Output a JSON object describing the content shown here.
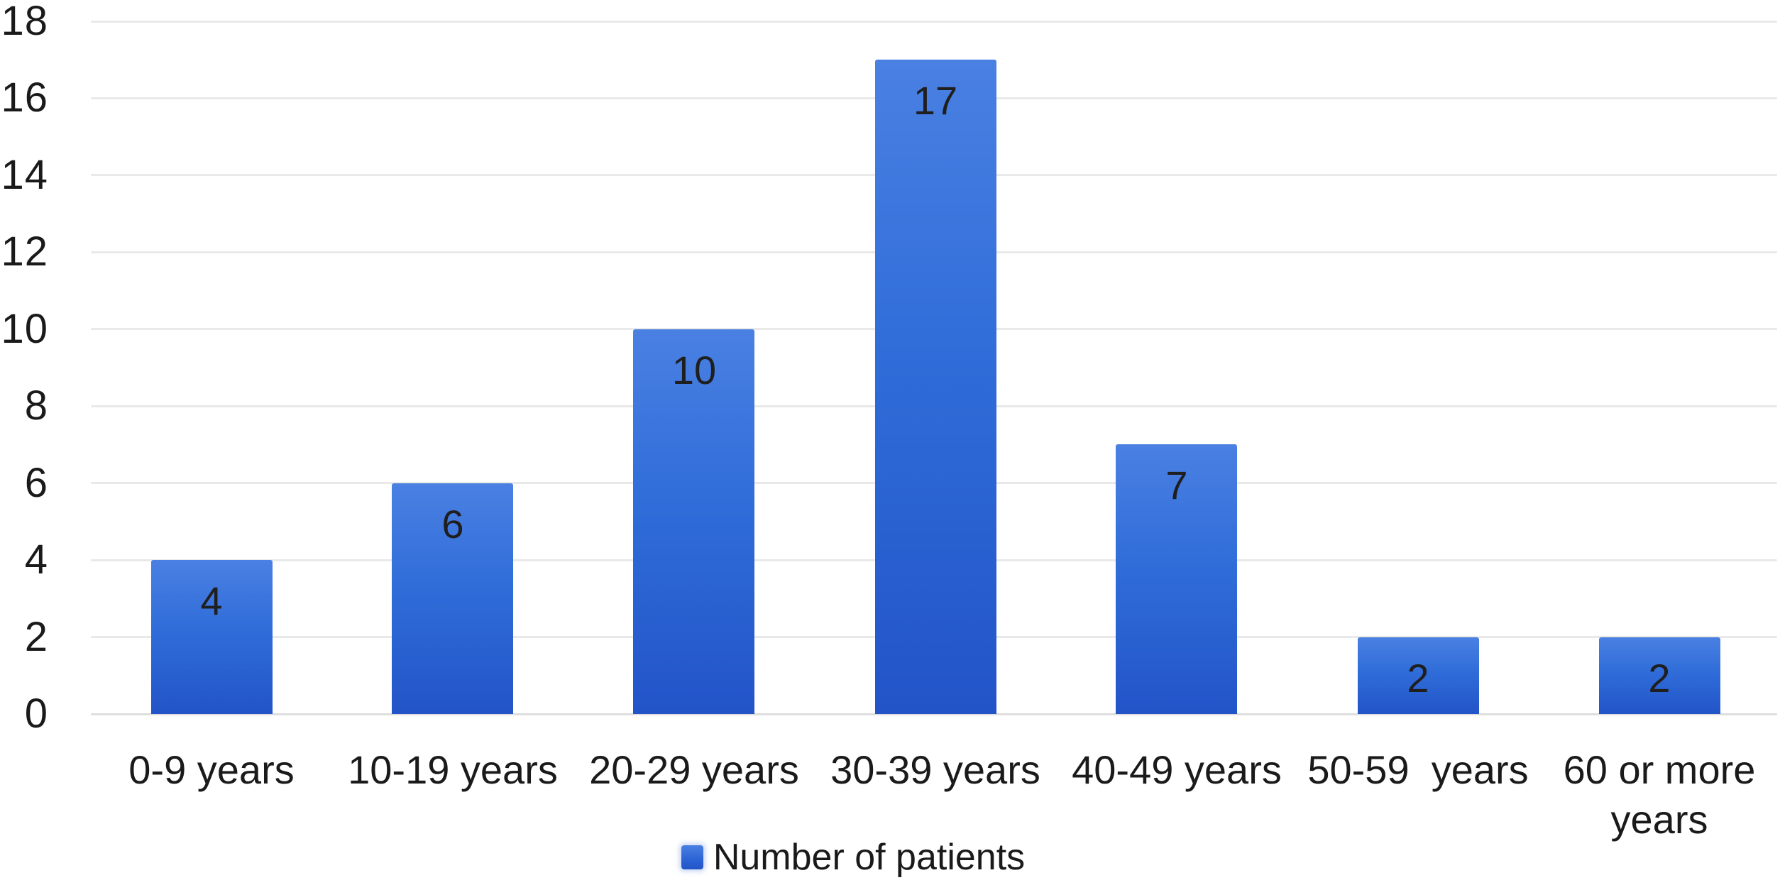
{
  "chart_data": {
    "type": "bar",
    "title": "",
    "xlabel": "",
    "ylabel": "",
    "categories": [
      "0-9 years",
      "10-19 years",
      "20-29 years",
      "30-39 years",
      "40-49 years",
      "50-59  years",
      "60 or more years"
    ],
    "series": [
      {
        "name": "Number of patients",
        "values": [
          4,
          6,
          10,
          17,
          7,
          2,
          2
        ]
      }
    ],
    "data_labels": [
      "4",
      "6",
      "10",
      "17",
      "7",
      "2",
      "2"
    ],
    "ylim": [
      0,
      18
    ],
    "yticks": [
      0,
      2,
      4,
      6,
      8,
      10,
      12,
      14,
      16,
      18
    ],
    "grid": true,
    "legend_position": "bottom-center"
  },
  "legend": {
    "label": "Number of patients"
  },
  "colors": {
    "bar_top": "#4a80e2",
    "bar_mid": "#306dd9",
    "bar_bottom": "#2254c8",
    "legend_swatch": "#2c63d5",
    "gridline": "#e9e9e9",
    "baseline": "#dedede",
    "axis_text": "#1a1a1a",
    "data_label_text": "#1f1f1f",
    "background": "#ffffff"
  }
}
